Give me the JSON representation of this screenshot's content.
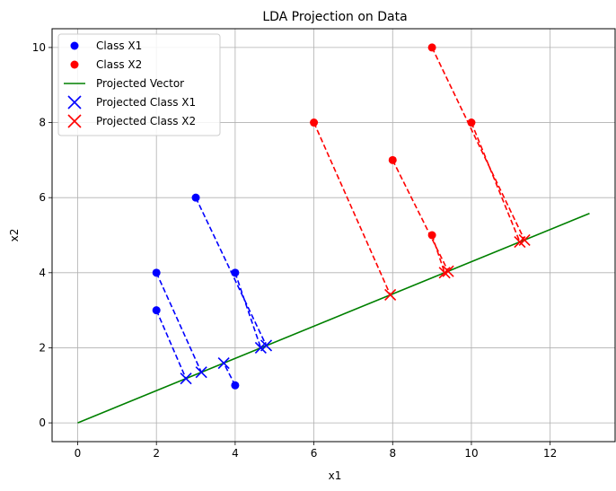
{
  "chart_data": {
    "type": "scatter",
    "title": "LDA Projection on Data",
    "xlabel": "x1",
    "ylabel": "x2",
    "xlim": [
      -0.65,
      13.65
    ],
    "ylim": [
      -0.5,
      10.5
    ],
    "xticks": [
      0,
      2,
      4,
      6,
      8,
      10,
      12
    ],
    "yticks": [
      0,
      2,
      4,
      6,
      8,
      10
    ],
    "grid": true,
    "legend_position": "top-left",
    "projection_vector": {
      "name": "Projected Vector",
      "color": "#008000",
      "points": [
        [
          0,
          0
        ],
        [
          13,
          5.58
        ]
      ]
    },
    "series": [
      {
        "name": "Class X1",
        "color": "#0000ff",
        "marker": "circle",
        "points": [
          [
            4,
            1
          ],
          [
            2,
            4
          ],
          [
            2,
            3
          ],
          [
            3,
            6
          ],
          [
            4,
            4
          ]
        ]
      },
      {
        "name": "Class X2",
        "color": "#ff0000",
        "marker": "circle",
        "points": [
          [
            9,
            10
          ],
          [
            6,
            8
          ],
          [
            9,
            5
          ],
          [
            8,
            7
          ],
          [
            10,
            8
          ]
        ]
      },
      {
        "name": "Projected Class X1",
        "color": "#0000ff",
        "marker": "x",
        "points": [
          [
            3.71,
            1.59
          ],
          [
            3.14,
            1.35
          ],
          [
            2.75,
            1.18
          ],
          [
            4.79,
            2.06
          ],
          [
            4.65,
            2.0
          ]
        ]
      },
      {
        "name": "Projected Class X2",
        "color": "#ff0000",
        "marker": "x",
        "points": [
          [
            11.35,
            4.87
          ],
          [
            7.94,
            3.41
          ],
          [
            9.32,
            4.0
          ],
          [
            9.41,
            4.04
          ],
          [
            11.23,
            4.82
          ]
        ]
      }
    ],
    "projection_lines": [
      {
        "from": [
          4,
          1
        ],
        "to": [
          3.71,
          1.59
        ],
        "color": "#0000ff"
      },
      {
        "from": [
          2,
          4
        ],
        "to": [
          3.14,
          1.35
        ],
        "color": "#0000ff"
      },
      {
        "from": [
          2,
          3
        ],
        "to": [
          2.75,
          1.18
        ],
        "color": "#0000ff"
      },
      {
        "from": [
          3,
          6
        ],
        "to": [
          4.79,
          2.06
        ],
        "color": "#0000ff"
      },
      {
        "from": [
          4,
          4
        ],
        "to": [
          4.65,
          2.0
        ],
        "color": "#0000ff"
      },
      {
        "from": [
          9,
          10
        ],
        "to": [
          11.35,
          4.87
        ],
        "color": "#ff0000"
      },
      {
        "from": [
          6,
          8
        ],
        "to": [
          7.94,
          3.41
        ],
        "color": "#ff0000"
      },
      {
        "from": [
          9,
          5
        ],
        "to": [
          9.32,
          4.0
        ],
        "color": "#ff0000"
      },
      {
        "from": [
          8,
          7
        ],
        "to": [
          9.41,
          4.04
        ],
        "color": "#ff0000"
      },
      {
        "from": [
          10,
          8
        ],
        "to": [
          11.23,
          4.82
        ],
        "color": "#ff0000"
      }
    ]
  }
}
